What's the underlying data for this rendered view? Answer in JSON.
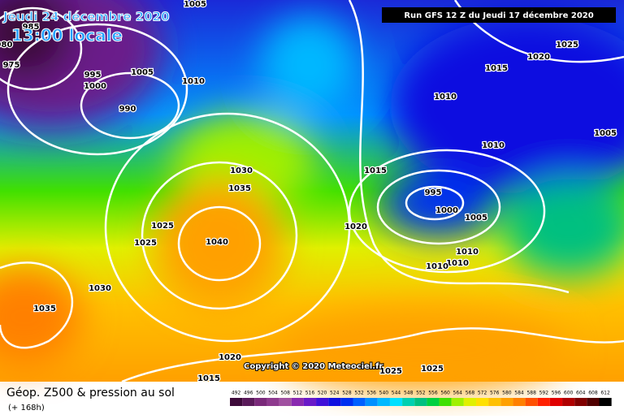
{
  "header": {
    "date": "Jeudi 24 décembre 2020",
    "time": "13:00 locale",
    "run": "Run GFS 12 Z du Jeudi 17 décembre 2020"
  },
  "map": {
    "isobar_labels": [
      "1005",
      "985",
      "980",
      "975",
      "995",
      "1000",
      "1005",
      "1010",
      "990",
      "1025",
      "1020",
      "1015",
      "1010",
      "1005",
      "1010",
      "1015",
      "1030",
      "1035",
      "995",
      "1000",
      "1005",
      "1020",
      "1025",
      "1025",
      "1040",
      "1010",
      "1010",
      "1010",
      "1030",
      "1035",
      "1020",
      "1015",
      "1025",
      "1025"
    ],
    "copyright": "Copyright © 2020 Meteociel.fr"
  },
  "footer": {
    "title": "Géop. Z500 & pression au sol",
    "lead": "(+ 168h)"
  },
  "legend": {
    "levels": [
      492,
      496,
      500,
      504,
      508,
      512,
      516,
      520,
      524,
      528,
      532,
      536,
      540,
      544,
      548,
      552,
      556,
      560,
      564,
      568,
      572,
      576,
      580,
      584,
      588,
      592,
      596,
      600,
      604,
      608,
      612
    ],
    "colors": [
      "#3d0a3a",
      "#5a1a5a",
      "#7a2a7a",
      "#8e3a8e",
      "#a050a0",
      "#8a2ab0",
      "#6a1ac8",
      "#4010d8",
      "#1010e0",
      "#0030f0",
      "#0060ff",
      "#0090ff",
      "#00b8ff",
      "#00e0ff",
      "#00d0b0",
      "#00c080",
      "#00d040",
      "#40e000",
      "#a0f000",
      "#e0f000",
      "#ffe000",
      "#ffc000",
      "#ffa000",
      "#ff8000",
      "#ff5000",
      "#ff2000",
      "#e00000",
      "#b00000",
      "#800000",
      "#500000",
      "#000000"
    ]
  }
}
